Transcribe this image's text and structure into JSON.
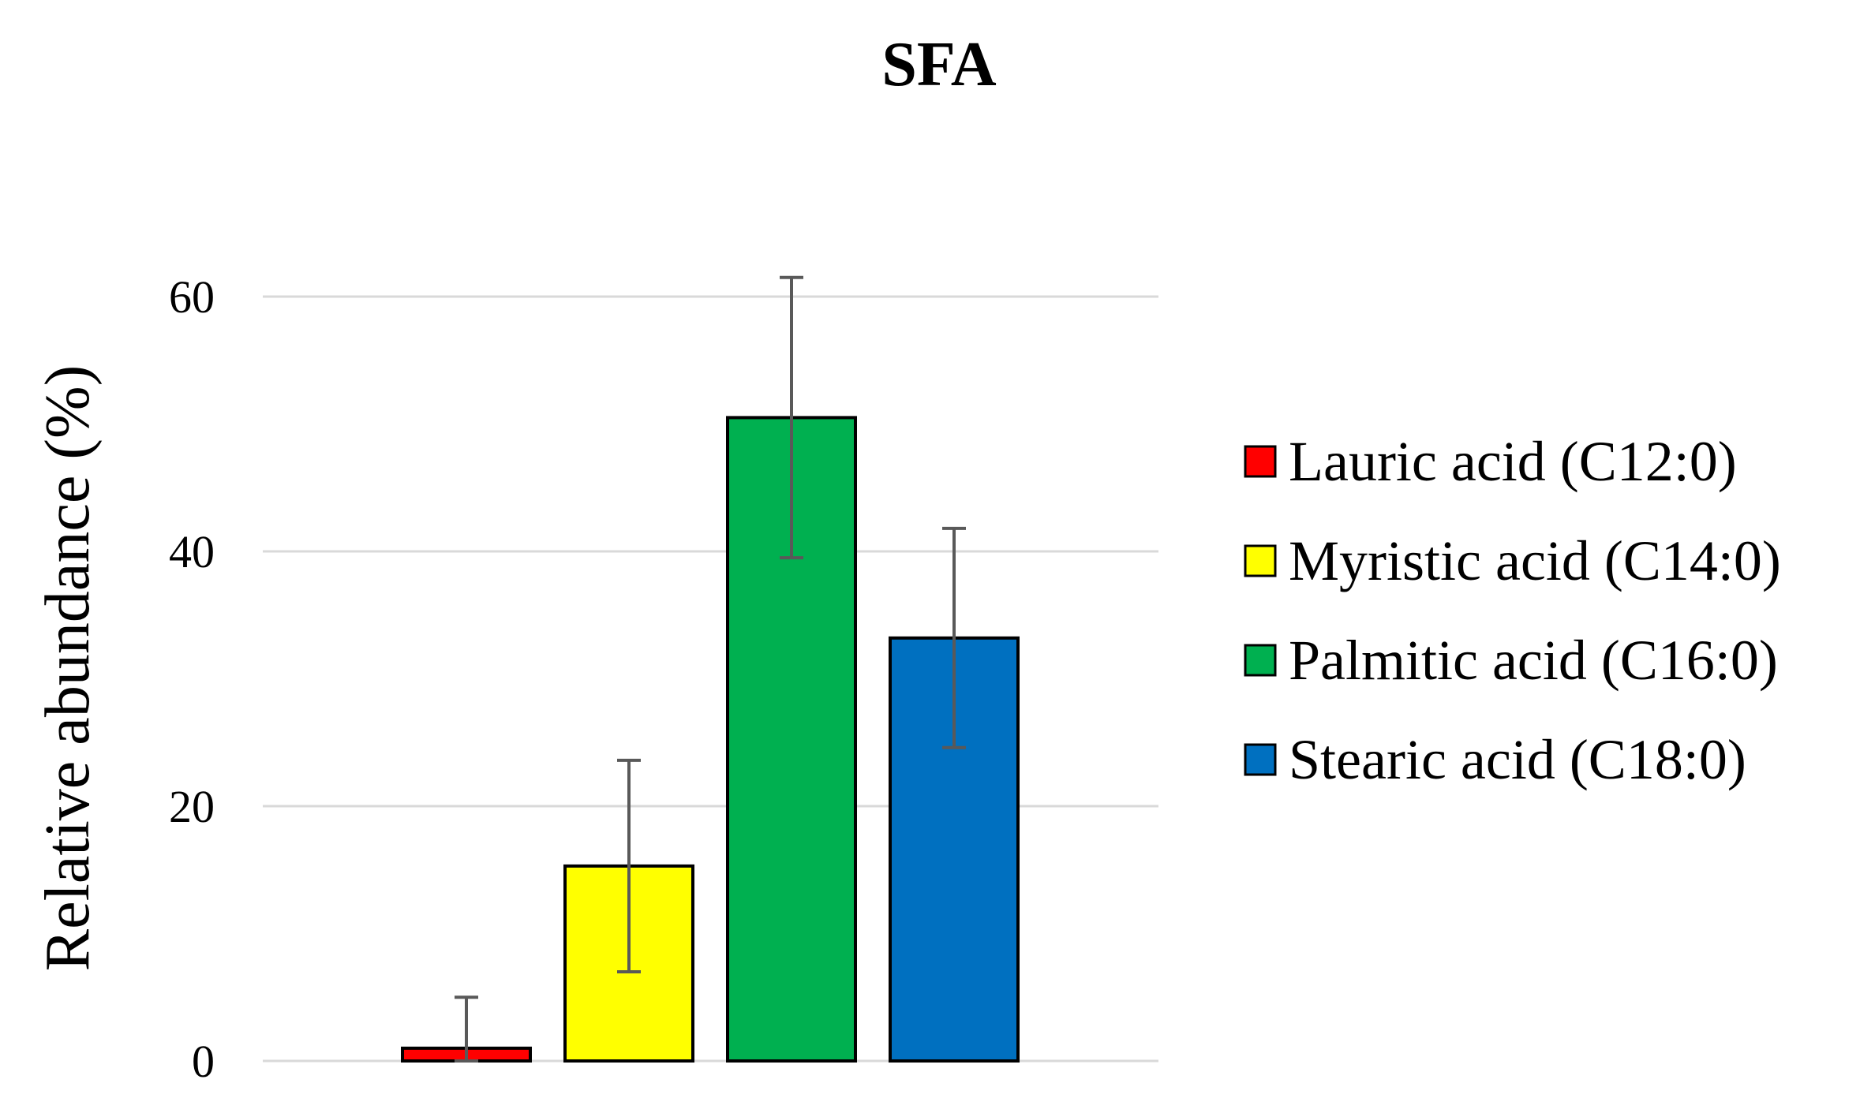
{
  "chart_data": {
    "type": "bar",
    "title": "SFA",
    "xlabel": "",
    "ylabel": "Relative abundance  (%)",
    "ylim": [
      0,
      65
    ],
    "yticks": [
      0,
      20,
      40,
      60
    ],
    "grid": "horizontal",
    "legend_position": "right",
    "categories": [
      "Lauric acid (C12:0)",
      "Myristic acid (C14:0)",
      "Palmitic acid (C16:0)",
      "Stearic acid (C18:0)"
    ],
    "values": [
      1.0,
      15.3,
      50.5,
      33.2
    ],
    "errors": [
      4.0,
      8.3,
      11.0,
      8.6
    ],
    "colors": [
      "#ff0000",
      "#ffff00",
      "#00b050",
      "#0070c0"
    ]
  }
}
